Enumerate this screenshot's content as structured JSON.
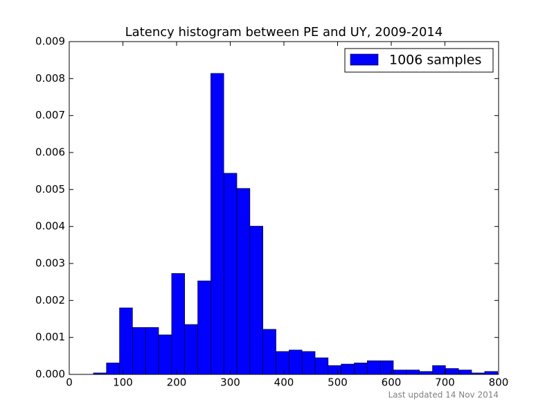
{
  "chart_data": {
    "type": "histogram",
    "title": "Latency histogram between PE and UY, 2009-2014",
    "footnote": "Last updated 14 Nov 2014",
    "bins": [
      45,
      69.3,
      93.6,
      117.9,
      142.2,
      166.5,
      190.8,
      215.1,
      239.4,
      263.7,
      288,
      312.3,
      336.6,
      360.9,
      385.2,
      409.5,
      433.8,
      458.1,
      482.4,
      506.7,
      531,
      555.3,
      579.6,
      603.9,
      628.2,
      652.5,
      676.8,
      701.1,
      725.4,
      749.7,
      774,
      798.3
    ],
    "series": [
      {
        "name": "1006 samples",
        "color": "#0000ff",
        "values": [
          4e-05,
          0.00031,
          0.0018,
          0.00127,
          0.00127,
          0.00107,
          0.00273,
          0.00135,
          0.00253,
          0.00814,
          0.00544,
          0.00503,
          0.00401,
          0.00122,
          0.00062,
          0.00066,
          0.00062,
          0.00045,
          0.00024,
          0.00028,
          0.00031,
          0.00037,
          0.00037,
          0.00012,
          0.00012,
          8e-05,
          0.00024,
          0.00016,
          0.00012,
          4e-05,
          8e-05
        ]
      }
    ],
    "xlim": [
      0,
      800
    ],
    "xticks": [
      0,
      100,
      200,
      300,
      400,
      500,
      600,
      700,
      800
    ],
    "ylim": [
      0,
      0.009
    ],
    "yticks": [
      {
        "value": 0,
        "label": "0.000"
      },
      {
        "value": 0.001,
        "label": "0.001"
      },
      {
        "value": 0.002,
        "label": "0.002"
      },
      {
        "value": 0.003,
        "label": "0.003"
      },
      {
        "value": 0.004,
        "label": "0.004"
      },
      {
        "value": 0.005,
        "label": "0.005"
      },
      {
        "value": 0.006,
        "label": "0.006"
      },
      {
        "value": 0.007,
        "label": "0.007"
      },
      {
        "value": 0.008,
        "label": "0.008"
      },
      {
        "value": 0.009,
        "label": "0.009"
      }
    ],
    "legend": "upper right"
  }
}
